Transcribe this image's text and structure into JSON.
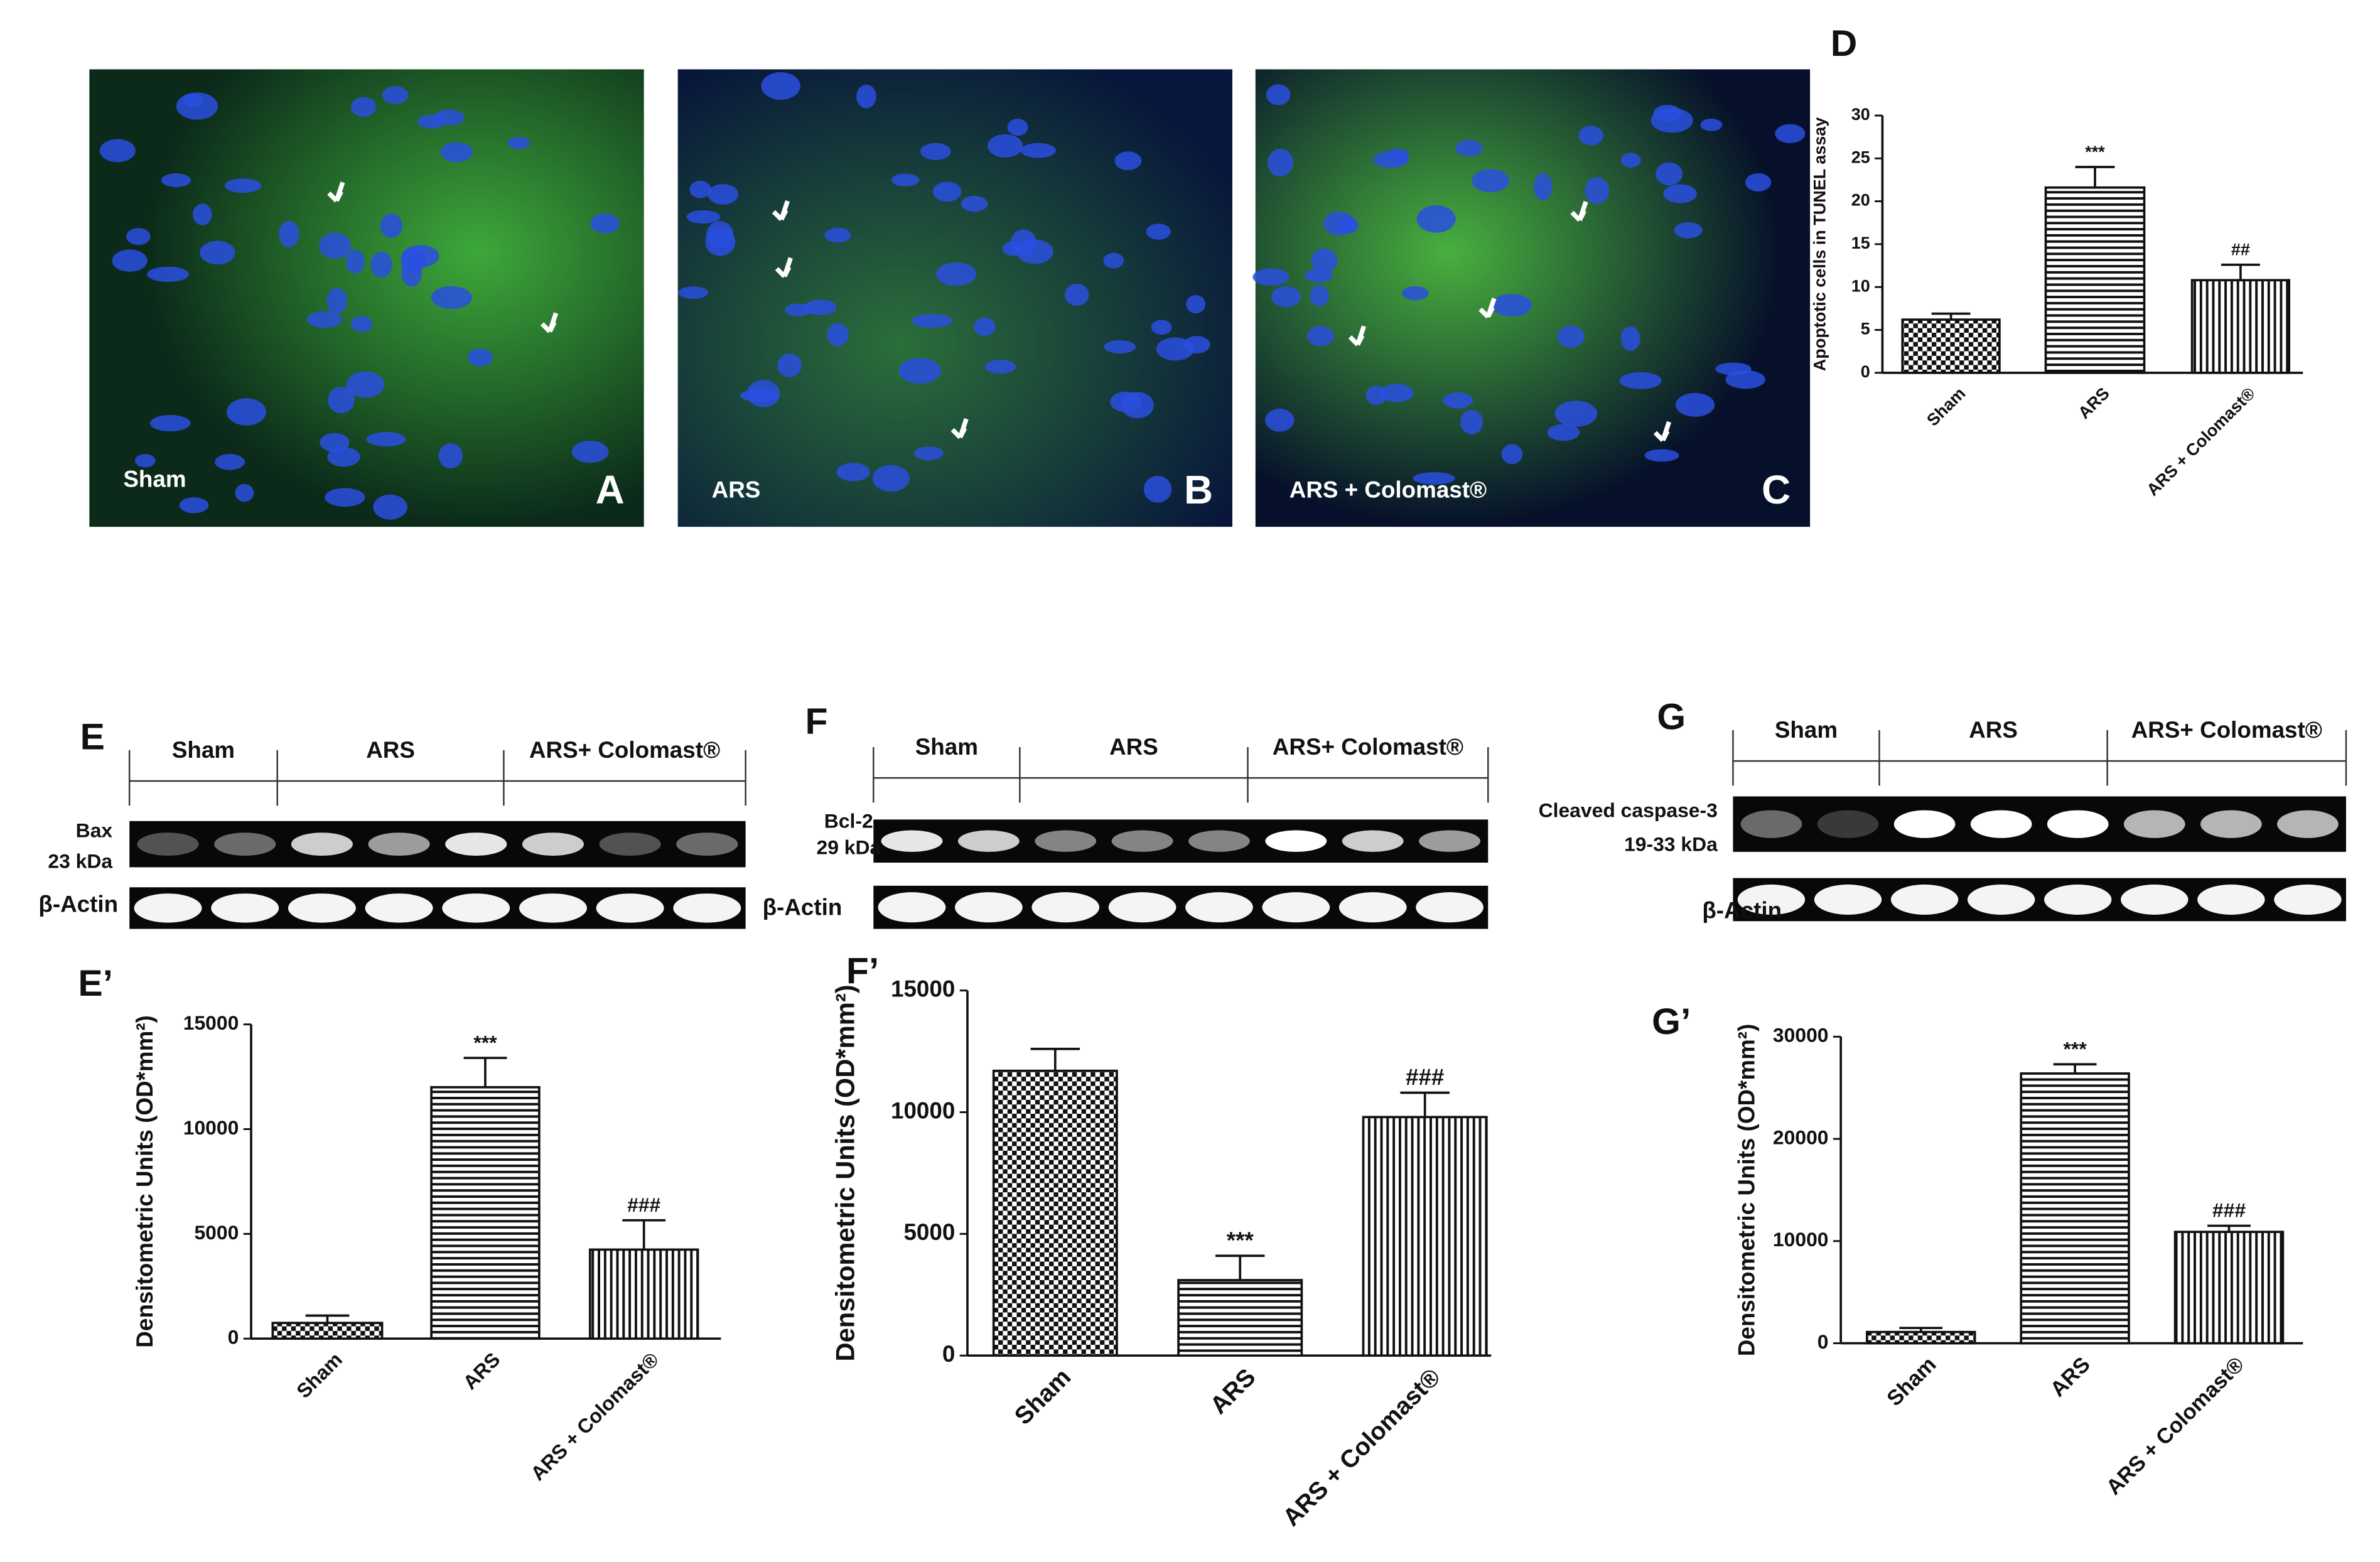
{
  "micrographs": [
    {
      "letter": "A",
      "label": "Sham"
    },
    {
      "letter": "B",
      "label": "ARS"
    },
    {
      "letter": "C",
      "label": "ARS + Colomast®"
    }
  ],
  "blots": [
    {
      "letter": "E",
      "groups": [
        "Sham",
        "ARS",
        "ARS+ Colomast®"
      ],
      "target": "Bax",
      "size": "23 kDa",
      "control": "β-Actin"
    },
    {
      "letter": "F",
      "groups": [
        "Sham",
        "ARS",
        "ARS+ Colomast®"
      ],
      "target": "Bcl-2",
      "size": "29 kDa",
      "control": "β-Actin"
    },
    {
      "letter": "G",
      "groups": [
        "Sham",
        "ARS",
        "ARS+ Colomast®"
      ],
      "target": "Cleaved caspase-3",
      "size": "19-33 kDa",
      "control": "β-Actin"
    }
  ],
  "chart_data": [
    {
      "type": "bar",
      "title": "D",
      "y_label": "Apoptotic cells in TUNEL assay",
      "categories": [
        "Sham",
        "ARS",
        "ARS + Colomast®"
      ],
      "values": [
        6.2,
        21.6,
        10.8
      ],
      "errors": [
        0.7,
        2.4,
        1.8
      ],
      "annotations": [
        null,
        "***",
        "##"
      ],
      "hatches": [
        "checker",
        "horizontal",
        "vertical"
      ],
      "ylim": [
        0,
        30
      ],
      "yticks": [
        0,
        5,
        10,
        15,
        20,
        25,
        30
      ]
    },
    {
      "type": "bar",
      "title": "E’",
      "y_label": "Densitometric Units (OD*mm²)",
      "categories": [
        "Sham",
        "ARS",
        "ARS + Colomast®"
      ],
      "values": [
        750,
        12000,
        4250
      ],
      "errors": [
        350,
        1400,
        1400
      ],
      "annotations": [
        null,
        "***",
        "###"
      ],
      "hatches": [
        "checker",
        "horizontal",
        "vertical"
      ],
      "ylim": [
        0,
        15000
      ],
      "yticks": [
        0,
        5000,
        10000,
        15000
      ]
    },
    {
      "type": "bar",
      "title": "F’",
      "y_label": "Densitometric Units (OD*mm²)",
      "categories": [
        "Sham",
        "ARS",
        "ARS + Colomast®"
      ],
      "values": [
        11700,
        3100,
        9800
      ],
      "errors": [
        900,
        1000,
        1000
      ],
      "annotations": [
        null,
        "***",
        "###"
      ],
      "hatches": [
        "checker",
        "horizontal",
        "vertical"
      ],
      "ylim": [
        0,
        15000
      ],
      "yticks": [
        0,
        5000,
        10000,
        15000
      ]
    },
    {
      "type": "bar",
      "title": "G’",
      "y_label": "Densitometric Units (OD*mm²)",
      "categories": [
        "Sham",
        "ARS",
        "ARS + Colomast®"
      ],
      "values": [
        1100,
        26400,
        10900
      ],
      "errors": [
        400,
        900,
        600
      ],
      "annotations": [
        null,
        "***",
        "###"
      ],
      "hatches": [
        "checker",
        "horizontal",
        "vertical"
      ],
      "ylim": [
        0,
        30000
      ],
      "yticks": [
        0,
        10000,
        20000,
        30000
      ]
    }
  ]
}
